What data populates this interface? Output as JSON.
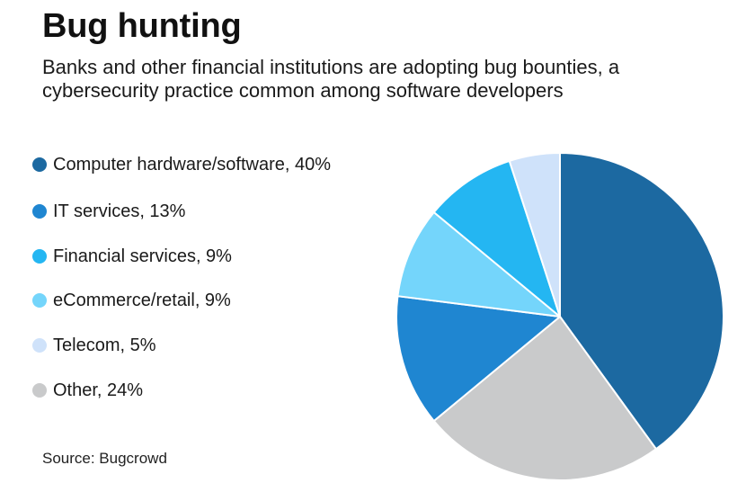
{
  "header": {
    "title": "Bug hunting",
    "subtitle": "Banks and other financial institutions are adopting bug bounties, a cybersecurity practice common among software developers"
  },
  "footer": {
    "source": "Source: Bugcrowd"
  },
  "chart_data": {
    "type": "pie",
    "title": "Bug hunting",
    "subtitle": "Banks and other financial institutions are adopting bug bounties, a cybersecurity practice common among software developers",
    "legend_position": "left",
    "slices": [
      {
        "label": "Computer hardware/software, 40%",
        "value": 40,
        "color": "#1c69a1"
      },
      {
        "label": "Other, 24%",
        "value": 24,
        "color": "#c9cacb"
      },
      {
        "label": "IT services, 13%",
        "value": 13,
        "color": "#1f86d1"
      },
      {
        "label": "eCommerce/retail, 9%",
        "value": 9,
        "color": "#74d5fb"
      },
      {
        "label": "Financial services, 9%",
        "value": 9,
        "color": "#24b6f2"
      },
      {
        "label": "Telecom, 5%",
        "value": 5,
        "color": "#cfe2fa"
      }
    ],
    "legend": [
      {
        "label": "Computer hardware/software, 40%",
        "color": "#1c69a1"
      },
      {
        "label": "IT services, 13%",
        "color": "#1f86d1"
      },
      {
        "label": "Financial services, 9%",
        "color": "#24b6f2"
      },
      {
        "label": "eCommerce/retail, 9%",
        "color": "#74d5fb"
      },
      {
        "label": "Telecom, 5%",
        "color": "#cfe2fa"
      },
      {
        "label": "Other, 24%",
        "color": "#c9cacb"
      }
    ]
  }
}
